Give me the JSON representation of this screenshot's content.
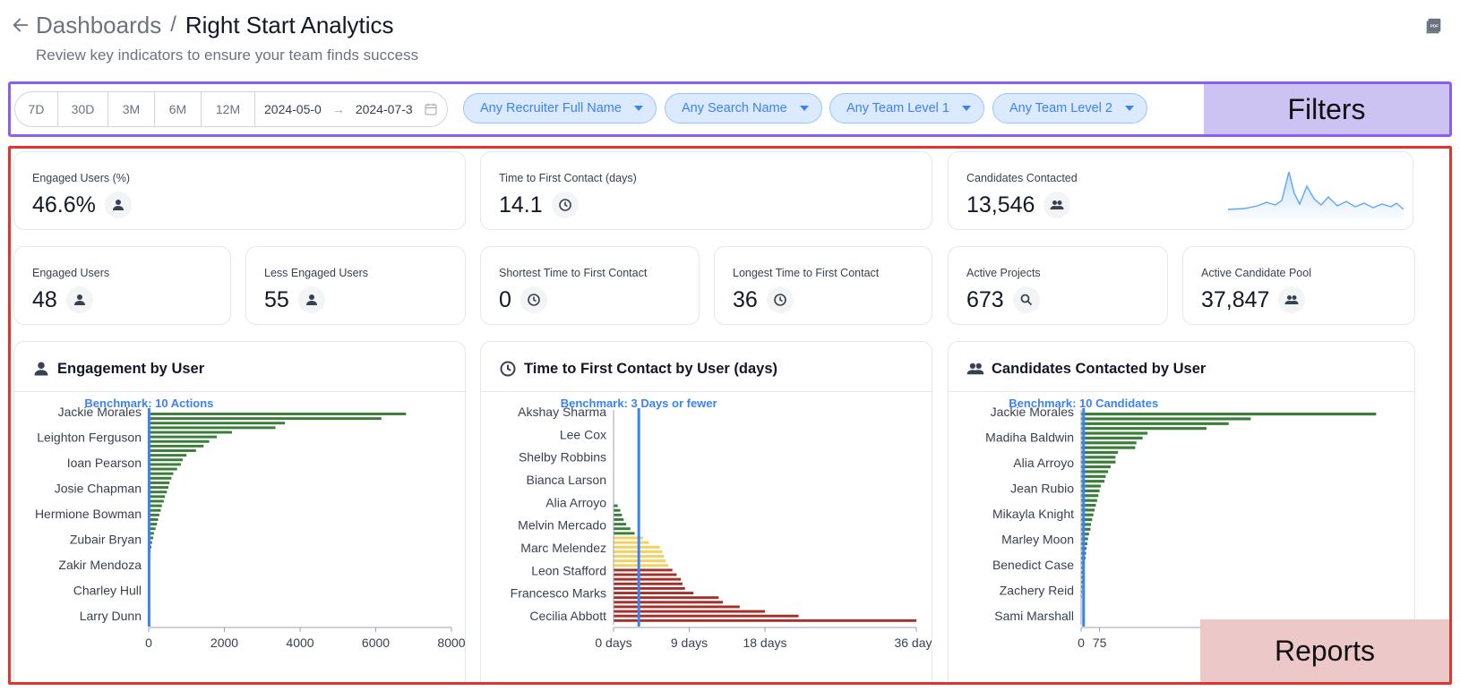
{
  "header": {
    "breadcrumb_parent": "Dashboards",
    "separator": "/",
    "title": "Right Start Analytics",
    "subtitle": "Review key indicators to ensure your team finds success"
  },
  "filters": {
    "ranges": [
      "7D",
      "30D",
      "3M",
      "6M",
      "12M"
    ],
    "date_from": "2024-05-0",
    "date_arrow": "→",
    "date_to": "2024-07-3",
    "pills": [
      "Any Recruiter Full Name",
      "Any Search Name",
      "Any Team Level 1",
      "Any Team Level 2"
    ],
    "overlay_label": "Filters"
  },
  "kpis": {
    "engaged_pct": {
      "label": "Engaged Users (%)",
      "value": "46.6%"
    },
    "time_first": {
      "label": "Time to First Contact (days)",
      "value": "14.1"
    },
    "contacted": {
      "label": "Candidates Contacted",
      "value": "13,546"
    },
    "engaged_users": {
      "label": "Engaged Users",
      "value": "48"
    },
    "less_engaged": {
      "label": "Less Engaged Users",
      "value": "55"
    },
    "shortest": {
      "label": "Shortest Time to First Contact",
      "value": "0"
    },
    "longest": {
      "label": "Longest Time to First Contact",
      "value": "36"
    },
    "active_projects": {
      "label": "Active Projects",
      "value": "673"
    },
    "candidate_pool": {
      "label": "Active Candidate Pool",
      "value": "37,847"
    }
  },
  "reports_overlay_label": "Reports",
  "colors": {
    "green": "#3d7d3a",
    "yellow": "#f3d060",
    "red": "#a3302a",
    "benchmark": "#3b82f6",
    "accent": "#3b82f6"
  },
  "chart_data": [
    {
      "type": "bar",
      "title": "Engagement by User",
      "orientation": "horizontal",
      "benchmark": {
        "label": "Benchmark: 10 Actions",
        "value": 10
      },
      "category_labels": [
        "Jackie Morales",
        "Leighton Ferguson",
        "Ioan Pearson",
        "Josie Chapman",
        "Hermione Bowman",
        "Zubair Bryan",
        "Zakir Mendoza",
        "Charley Hull",
        "Larry Dunn"
      ],
      "values": [
        6800,
        6150,
        3600,
        3350,
        2200,
        1800,
        1600,
        1450,
        1250,
        1000,
        900,
        850,
        750,
        650,
        600,
        550,
        520,
        480,
        430,
        400,
        350,
        320,
        280,
        250,
        220,
        180,
        140,
        120,
        90,
        70,
        50,
        40,
        30,
        20,
        15,
        10,
        8,
        6,
        5,
        4,
        3,
        2,
        1,
        1,
        0,
        0
      ],
      "xticks": [
        0,
        2000,
        4000,
        6000,
        8000
      ],
      "xlim": [
        0,
        8000
      ]
    },
    {
      "type": "bar",
      "title": "Time to First Contact by User (days)",
      "orientation": "horizontal",
      "benchmark": {
        "label": "Benchmark: 3 Days or fewer",
        "value": 3
      },
      "category_labels": [
        "Akshay Sharma",
        "Lee Cox",
        "Shelby Robbins",
        "Bianca Larson",
        "Alia Arroyo",
        "Melvin Mercado",
        "Marc Melendez",
        "Leon Stafford",
        "Francesco Marks",
        "Cecilia Abbott"
      ],
      "values": [
        0,
        0,
        0,
        0,
        0,
        0,
        0,
        0,
        0,
        0,
        0,
        0,
        0,
        0,
        0,
        0,
        0,
        0,
        0,
        0,
        0.5,
        0.8,
        1,
        1.2,
        1.5,
        2,
        2.5,
        3.5,
        4.2,
        5.5,
        5.8,
        6,
        6.2,
        6.5,
        7,
        7.5,
        8,
        8.2,
        8.5,
        9.5,
        12.5,
        13,
        15,
        18,
        22,
        36
      ],
      "xticks": [
        "0 days",
        "9 days",
        "18 days",
        "36 days"
      ],
      "xlim": [
        0,
        36
      ]
    },
    {
      "type": "bar",
      "title": "Candidates Contacted by User",
      "orientation": "horizontal",
      "benchmark": {
        "label": "Benchmark: 10 Candidates",
        "value": 10
      },
      "category_labels": [
        "Jackie Morales",
        "Madiha Baldwin",
        "Alia Arroyo",
        "Jean Rubio",
        "Mikayla Knight",
        "Marley Moon",
        "Benedict Case",
        "Zachery Reid",
        "Sami Marshall"
      ],
      "values": [
        1200,
        690,
        600,
        510,
        270,
        250,
        225,
        220,
        150,
        140,
        140,
        120,
        110,
        100,
        95,
        80,
        75,
        70,
        65,
        60,
        55,
        50,
        45,
        40,
        38,
        32,
        28,
        25,
        22,
        20,
        18,
        15,
        12,
        10,
        8,
        6,
        5,
        4,
        3,
        2,
        1,
        1,
        0,
        0
      ],
      "xticks": [
        0,
        75
      ],
      "xlim": [
        0,
        1275
      ]
    }
  ]
}
